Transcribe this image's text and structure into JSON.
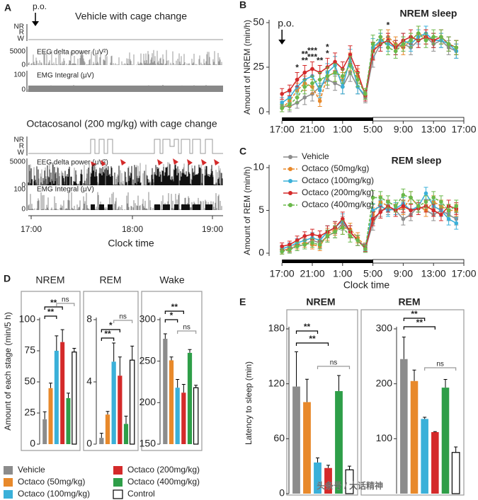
{
  "panel_a": {
    "label": "A",
    "arrow_label": "p.o.",
    "title_1": "Vehicle with cage change",
    "title_2": "Octacosanol (200 mg/kg) with cage change",
    "stages": [
      "NR",
      "R",
      "W"
    ],
    "eeg_label": "EEG delta power (μV²)",
    "eeg_ticks": [
      "5000",
      "0"
    ],
    "emg_label": "EMG Integral (μV)",
    "emg_ticks": [
      "100",
      "0"
    ],
    "x_ticks": [
      "17:00",
      "18:00",
      "19:00"
    ],
    "x_label": "Clock time"
  },
  "chart_data": [
    {
      "type": "line",
      "panel": "B",
      "title": "NREM sleep",
      "ylabel": "Amount of NREM (min/h)",
      "annotation": "p.o.",
      "x": [
        0,
        1,
        2,
        3,
        4,
        5,
        6,
        7,
        8,
        9,
        10,
        11,
        12,
        13,
        14,
        15,
        16,
        17,
        18,
        19,
        20,
        21,
        22,
        23
      ],
      "xlim": [
        -1.7,
        24
      ],
      "xticks": [
        {
          "value": 0,
          "label": "17:00"
        },
        {
          "value": 4,
          "label": "21:00"
        },
        {
          "value": 8,
          "label": "1:00"
        },
        {
          "value": 12,
          "label": "5:00"
        },
        {
          "value": 16,
          "label": "9:00"
        },
        {
          "value": 20,
          "label": "13:00"
        },
        {
          "value": 24,
          "label": "17:00"
        }
      ],
      "ylim": [
        0,
        50
      ],
      "yticks": [
        0,
        25,
        50
      ],
      "series": [
        {
          "color": "#8c8c8c",
          "line_style": "solid",
          "values": [
            3,
            3,
            5,
            8,
            10,
            14,
            18,
            16,
            14,
            22,
            14,
            8,
            30,
            38,
            40,
            36,
            38,
            36,
            40,
            42,
            38,
            40,
            36,
            34
          ],
          "errors": [
            3,
            3,
            3,
            4,
            4,
            4,
            5,
            4,
            4,
            5,
            4,
            3,
            5,
            4,
            4,
            4,
            4,
            4,
            4,
            4,
            4,
            4,
            4,
            4
          ]
        },
        {
          "color": "#e8892b",
          "line_style": "dashed",
          "values": [
            2,
            6,
            12,
            16,
            14,
            6,
            20,
            22,
            18,
            28,
            20,
            10,
            34,
            40,
            42,
            38,
            36,
            40,
            44,
            42,
            40,
            42,
            38,
            36
          ],
          "errors": [
            2,
            3,
            4,
            4,
            4,
            3,
            5,
            5,
            4,
            5,
            4,
            3,
            5,
            4,
            4,
            4,
            4,
            4,
            4,
            4,
            4,
            4,
            4,
            4
          ]
        },
        {
          "color": "#3ab0d9",
          "line_style": "solid",
          "values": [
            5,
            8,
            14,
            18,
            20,
            12,
            22,
            26,
            14,
            30,
            14,
            9,
            36,
            40,
            38,
            36,
            40,
            38,
            42,
            44,
            40,
            40,
            38,
            34
          ],
          "errors": [
            3,
            3,
            4,
            4,
            4,
            4,
            5,
            5,
            4,
            5,
            4,
            3,
            5,
            4,
            4,
            4,
            4,
            4,
            4,
            4,
            4,
            4,
            4,
            4
          ]
        },
        {
          "color": "#d42a2a",
          "line_style": "solid",
          "values": [
            10,
            12,
            18,
            22,
            24,
            22,
            25,
            28,
            24,
            32,
            22,
            9,
            34,
            38,
            40,
            36,
            40,
            42,
            40,
            42,
            40,
            42,
            38,
            36
          ],
          "errors": [
            3,
            3,
            4,
            4,
            4,
            4,
            5,
            5,
            4,
            5,
            4,
            3,
            5,
            4,
            4,
            4,
            4,
            4,
            4,
            4,
            4,
            4,
            4,
            4
          ]
        },
        {
          "color": "#6ab84a",
          "line_style": "dashed",
          "values": [
            2,
            4,
            8,
            14,
            16,
            18,
            20,
            22,
            20,
            26,
            18,
            10,
            38,
            42,
            36,
            34,
            38,
            40,
            44,
            40,
            42,
            42,
            38,
            36
          ],
          "errors": [
            2,
            3,
            3,
            4,
            4,
            4,
            5,
            5,
            4,
            5,
            4,
            3,
            5,
            4,
            4,
            4,
            4,
            4,
            4,
            4,
            4,
            4,
            4,
            4
          ]
        }
      ],
      "annotations": [
        {
          "text": "*",
          "series": 3,
          "x": 2
        },
        {
          "text": "**",
          "series": 3,
          "x": 3
        },
        {
          "text": "**",
          "series": 2,
          "x": 3
        },
        {
          "text": "***",
          "series": 3,
          "x": 4
        },
        {
          "text": "***",
          "series": 2,
          "x": 4
        },
        {
          "text": "**",
          "series": 3,
          "x": 5
        },
        {
          "text": "*",
          "series": 2,
          "x": 6
        },
        {
          "text": "*",
          "series": 1,
          "x": 6
        },
        {
          "text": "*",
          "series": 1,
          "x": 14
        }
      ]
    },
    {
      "type": "line",
      "panel": "C",
      "title": "REM sleep",
      "ylabel": "Amount of REM (min/h)",
      "xlabel": "Clock time",
      "x": [
        0,
        1,
        2,
        3,
        4,
        5,
        6,
        7,
        8,
        9,
        10,
        11,
        12,
        13,
        14,
        15,
        16,
        17,
        18,
        19,
        20,
        21,
        22,
        23
      ],
      "xlim": [
        -1.7,
        24
      ],
      "xticks": [
        {
          "value": 0,
          "label": "17:00"
        },
        {
          "value": 4,
          "label": "21:00"
        },
        {
          "value": 8,
          "label": "1:00"
        },
        {
          "value": 12,
          "label": "5:00"
        },
        {
          "value": 16,
          "label": "9:00"
        },
        {
          "value": 20,
          "label": "13:00"
        },
        {
          "value": 24,
          "label": "17:00"
        }
      ],
      "ylim": [
        0,
        10
      ],
      "yticks": [
        0,
        5,
        10
      ],
      "series": [
        {
          "name": "Vehicle",
          "color": "#8c8c8c",
          "line_style": "solid",
          "values": [
            0.3,
            0.5,
            0.8,
            1.0,
            1.5,
            1.2,
            2.0,
            2.5,
            3.5,
            2.5,
            1.5,
            0.5,
            3.5,
            5.0,
            5.2,
            5.0,
            4.0,
            4.5,
            5.5,
            5.0,
            4.5,
            5.0,
            4.5,
            4.0
          ],
          "errors": [
            0.4,
            0.4,
            0.5,
            0.5,
            0.6,
            0.6,
            0.7,
            0.7,
            0.8,
            0.7,
            0.6,
            0.4,
            0.8,
            0.7,
            0.7,
            0.7,
            0.7,
            0.7,
            0.7,
            0.7,
            0.7,
            0.7,
            0.7,
            0.7
          ]
        },
        {
          "name": "Octaco (50mg/kg)",
          "color": "#e8892b",
          "line_style": "dashed",
          "values": [
            0.2,
            0.6,
            1.0,
            1.2,
            1.0,
            0.8,
            2.2,
            2.8,
            3.0,
            2.8,
            1.8,
            0.8,
            4.5,
            6.0,
            5.5,
            5.0,
            5.2,
            6.5,
            5.5,
            5.0,
            6.0,
            5.5,
            5.0,
            5.0
          ],
          "errors": [
            0.3,
            0.4,
            0.5,
            0.5,
            0.5,
            0.5,
            0.7,
            0.7,
            0.8,
            0.7,
            0.6,
            0.4,
            0.8,
            0.7,
            0.7,
            0.7,
            0.7,
            0.7,
            0.7,
            0.7,
            0.7,
            0.7,
            0.7,
            0.7
          ]
        },
        {
          "name": "Octaco (100mg/kg)",
          "color": "#3ab0d9",
          "line_style": "solid",
          "values": [
            0.5,
            0.8,
            1.2,
            1.5,
            1.8,
            1.5,
            2.5,
            3.0,
            3.8,
            2.5,
            1.5,
            0.7,
            5.0,
            5.5,
            5.0,
            5.2,
            5.8,
            5.0,
            5.5,
            7.0,
            5.5,
            5.0,
            4.0,
            3.5
          ],
          "errors": [
            0.4,
            0.4,
            0.5,
            0.5,
            0.6,
            0.6,
            0.7,
            0.7,
            0.8,
            0.7,
            0.6,
            0.4,
            0.8,
            0.7,
            0.7,
            0.7,
            0.7,
            0.7,
            0.7,
            0.7,
            0.7,
            0.7,
            0.7,
            0.7
          ]
        },
        {
          "name": "Octaco (200mg/kg)",
          "color": "#d42a2a",
          "line_style": "solid",
          "values": [
            0.8,
            1.0,
            1.5,
            2.0,
            2.2,
            2.0,
            2.5,
            3.0,
            4.0,
            2.5,
            1.5,
            0.6,
            4.0,
            4.8,
            5.5,
            5.0,
            5.5,
            5.0,
            5.2,
            5.5,
            5.0,
            4.5,
            5.5,
            5.2
          ],
          "errors": [
            0.4,
            0.4,
            0.5,
            0.5,
            0.6,
            0.6,
            0.7,
            0.7,
            0.8,
            0.7,
            0.6,
            0.4,
            0.8,
            0.7,
            0.7,
            0.7,
            0.7,
            0.7,
            0.7,
            0.7,
            0.7,
            0.7,
            0.7,
            0.7
          ]
        },
        {
          "name": "Octaco (400mg/kg)",
          "color": "#6ab84a",
          "line_style": "dashed",
          "values": [
            0.2,
            0.4,
            0.8,
            1.0,
            1.2,
            1.0,
            2.0,
            2.5,
            3.0,
            2.0,
            1.5,
            0.5,
            6.5,
            6.5,
            6.0,
            5.5,
            6.8,
            6.5,
            5.5,
            6.0,
            6.5,
            6.0,
            5.0,
            5.5
          ],
          "errors": [
            0.3,
            0.4,
            0.5,
            0.5,
            0.5,
            0.5,
            0.7,
            0.7,
            0.8,
            0.7,
            0.6,
            0.4,
            0.8,
            0.7,
            0.7,
            0.7,
            0.7,
            0.7,
            0.7,
            0.7,
            0.7,
            0.7,
            0.7,
            0.7
          ]
        }
      ]
    },
    {
      "type": "bar",
      "panel": "D",
      "title": "NREM",
      "ylabel": "Amount of each stage (min/5 h)",
      "ylim": [
        0,
        100
      ],
      "yticks": [
        0,
        25,
        50,
        75,
        100
      ],
      "values": [
        20,
        45,
        75,
        82,
        37,
        74
      ],
      "errors": [
        6,
        4,
        12,
        10,
        4,
        3
      ],
      "annotations": [
        "**",
        "**",
        "ns"
      ]
    },
    {
      "type": "bar",
      "title": "REM",
      "ylim": [
        0,
        8
      ],
      "yticks": [
        0,
        4,
        8
      ],
      "values": [
        0.4,
        1.9,
        5.3,
        4.4,
        1.3,
        5.4
      ],
      "errors": [
        0.3,
        0.2,
        1.2,
        1.2,
        0.5,
        0.9
      ],
      "annotations": [
        "*",
        "**",
        "ns"
      ]
    },
    {
      "type": "bar",
      "title": "Wake",
      "ylim": [
        150,
        300
      ],
      "yticks": [
        150,
        200,
        250,
        300
      ],
      "values": [
        277,
        251,
        218,
        212,
        260,
        218
      ],
      "errors": [
        6,
        4,
        10,
        10,
        4,
        3
      ],
      "annotations": [
        "**",
        "*",
        "ns"
      ]
    },
    {
      "type": "bar",
      "panel": "E",
      "title": "NREM",
      "ylabel": "Latency to sleep (min)",
      "ylim": [
        0,
        180
      ],
      "yticks": [
        0,
        60,
        120,
        180
      ],
      "values": [
        117,
        100,
        34,
        28,
        112,
        26
      ],
      "errors": [
        38,
        25,
        5,
        3,
        17,
        4
      ],
      "annotations": [
        "**",
        "**",
        "ns"
      ]
    },
    {
      "type": "bar",
      "title": "REM",
      "ylim": [
        0,
        300
      ],
      "yticks": [
        100,
        200,
        300
      ],
      "values": [
        245,
        205,
        136,
        112,
        193,
        75
      ],
      "errors": [
        40,
        20,
        3,
        1,
        15,
        10
      ],
      "annotations": [
        "**",
        "**",
        "ns"
      ]
    }
  ],
  "bar_legend": [
    {
      "name": "Vehicle",
      "color": "#8c8c8c"
    },
    {
      "name": "Octaco (50mg/kg)",
      "color": "#e8892b"
    },
    {
      "name": "Octaco (100mg/kg)",
      "color": "#3ab0d9"
    },
    {
      "name": "Octaco (200mg/kg)",
      "color": "#d42a2a"
    },
    {
      "name": "Octaco (400mg/kg)",
      "color": "#2e9e48"
    },
    {
      "name": "Control",
      "color": "#ffffff"
    }
  ],
  "watermark": "头条号 / 大话精神"
}
